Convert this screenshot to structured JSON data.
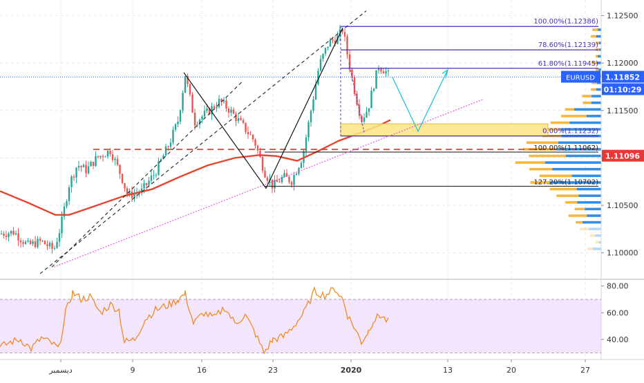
{
  "chart_data": {
    "type": "candlestick",
    "symbol": "EURUSD",
    "price_axis": {
      "range": [
        1.0975,
        1.1265
      ],
      "ticks": [
        "1.12500",
        "1.12000",
        "1.11500",
        "1.11000",
        "1.10500",
        "1.10000"
      ]
    },
    "rsi_axis": {
      "range": [
        25,
        85
      ],
      "ticks": [
        "80.00",
        "60.00",
        "40.00"
      ],
      "band": [
        30,
        70
      ]
    },
    "time_axis": {
      "ticks": [
        "ديسمبر",
        "9",
        "16",
        "23",
        "2020",
        "13",
        "20",
        "27"
      ]
    },
    "current_price": {
      "label": "EURUSD",
      "value": "1.11852",
      "timer": "01:10:29"
    },
    "level_badge": "1.11096",
    "fib_upper": [
      {
        "label": "100.00%(1.12386)",
        "value": 1.12386
      },
      {
        "label": "78.60%(1.12139)",
        "value": 1.12139
      },
      {
        "label": "61.80%(1.11945)",
        "value": 1.11945
      },
      {
        "label": "0.00%(1.11232)",
        "value": 1.11232
      }
    ],
    "fib_lower": [
      {
        "label": "100.00%(1.11062)",
        "value": 1.11062
      },
      {
        "label": "127.20%(1.10702)",
        "value": 1.10702
      }
    ],
    "support_zone": [
      1.1123,
      1.1136
    ],
    "dashed_level": 1.1109,
    "colors": {
      "up": "#26a69a",
      "down": "#ef5350",
      "ma": "#e5452f",
      "fib": "#4b2fb5",
      "current": "#2962ff",
      "rsi": "#f08a24",
      "rsi_band": "#f3e5fb",
      "zone": "#fce583",
      "projection": "#21c3d9",
      "trend": "#e14ee1",
      "badge_red": "#e53935"
    }
  }
}
